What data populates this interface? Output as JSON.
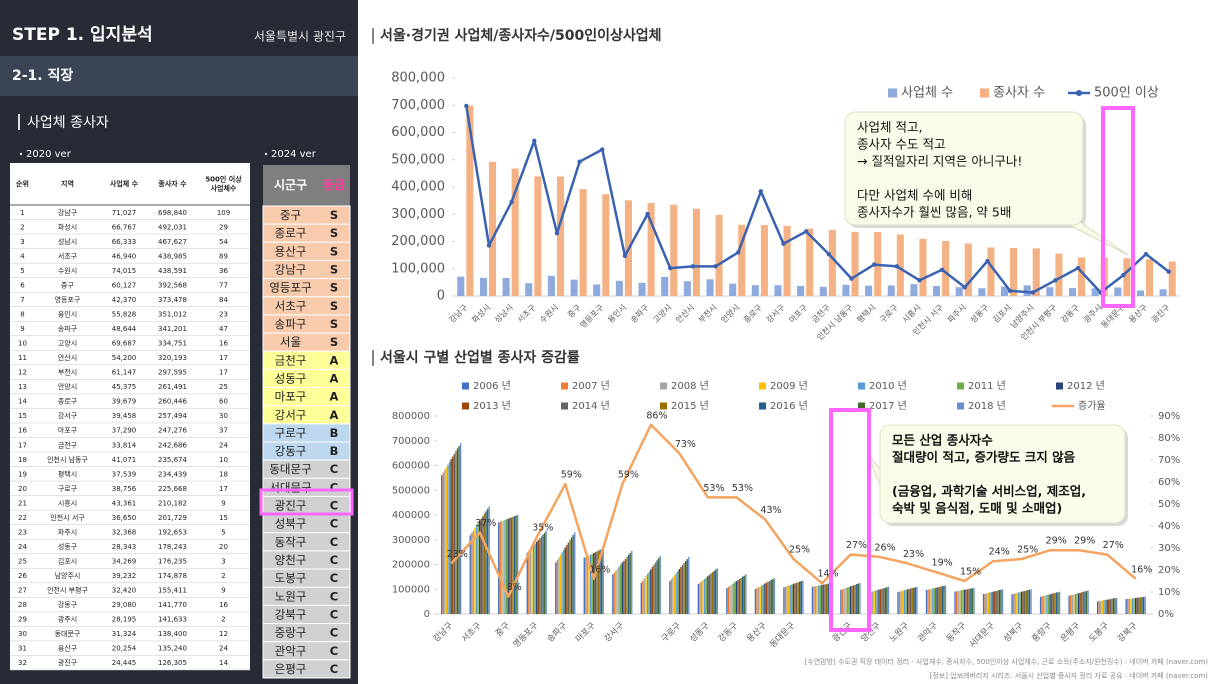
{
  "header": {
    "title": "STEP 1. 입지분석",
    "location": "서울특별시 광진구",
    "section": "2-1. 직장",
    "subsection": "사업체 종사자"
  },
  "table_2020": {
    "label": "2020 ver",
    "columns": [
      [
        "순위"
      ],
      [
        "지역"
      ],
      [
        "사업체 수"
      ],
      [
        "종사자 수"
      ],
      [
        "500인 이상",
        "사업체수"
      ]
    ],
    "rows": [
      [
        "1",
        "강남구",
        "71,027",
        "698,840",
        "109"
      ],
      [
        "2",
        "화성시",
        "66,767",
        "492,031",
        "29"
      ],
      [
        "3",
        "성남시",
        "66,333",
        "467,627",
        "54"
      ],
      [
        "4",
        "서초구",
        "46,940",
        "438,985",
        "89"
      ],
      [
        "5",
        "수원시",
        "74,015",
        "438,591",
        "36"
      ],
      [
        "6",
        "중구",
        "60,127",
        "392,568",
        "77"
      ],
      [
        "7",
        "영등포구",
        "42,370",
        "373,478",
        "84"
      ],
      [
        "8",
        "용인시",
        "55,828",
        "351,012",
        "23"
      ],
      [
        "9",
        "송파구",
        "48,644",
        "341,201",
        "47"
      ],
      [
        "10",
        "고양시",
        "69,687",
        "334,751",
        "16"
      ],
      [
        "11",
        "안산시",
        "54,200",
        "320,193",
        "17"
      ],
      [
        "12",
        "부천시",
        "61,147",
        "297,595",
        "17"
      ],
      [
        "13",
        "안양시",
        "45,375",
        "261,491",
        "25"
      ],
      [
        "14",
        "종로구",
        "39,679",
        "260,446",
        "60"
      ],
      [
        "15",
        "강서구",
        "39,458",
        "257,494",
        "30"
      ],
      [
        "16",
        "마포구",
        "37,290",
        "247,276",
        "37"
      ],
      [
        "17",
        "금천구",
        "33,814",
        "242,686",
        "24"
      ],
      [
        "18",
        "인천시 남동구",
        "41,071",
        "235,674",
        "10"
      ],
      [
        "19",
        "평택시",
        "37,539",
        "234,439",
        "18"
      ],
      [
        "20",
        "구로구",
        "38,756",
        "225,668",
        "17"
      ],
      [
        "21",
        "시흥시",
        "43,361",
        "210,182",
        "9"
      ],
      [
        "22",
        "인천시 서구",
        "36,650",
        "201,729",
        "15"
      ],
      [
        "23",
        "파주시",
        "32,368",
        "192,653",
        "5"
      ],
      [
        "24",
        "성동구",
        "28,343",
        "178,243",
        "20"
      ],
      [
        "25",
        "김포시",
        "34,269",
        "176,235",
        "3"
      ],
      [
        "26",
        "남양주시",
        "39,232",
        "174,878",
        "2"
      ],
      [
        "27",
        "인천시 부평구",
        "32,420",
        "155,411",
        "9"
      ],
      [
        "28",
        "강동구",
        "29,080",
        "141,770",
        "16"
      ],
      [
        "29",
        "광주시",
        "28,195",
        "141,633",
        "2"
      ],
      [
        "30",
        "동대문구",
        "31,324",
        "138,400",
        "12"
      ],
      [
        "31",
        "용산구",
        "20,254",
        "135,240",
        "24"
      ],
      [
        "32",
        "광진구",
        "24,445",
        "126,305",
        "14"
      ]
    ]
  },
  "table_2024": {
    "label": "2024 ver",
    "columns": [
      "시군구",
      "등급"
    ],
    "grade_colors": {
      "S": "#f8cbad",
      "A": "#ffff99",
      "B": "#bdd7ee",
      "C": "#d0d0d0"
    },
    "rows": [
      [
        "중구",
        "S"
      ],
      [
        "종로구",
        "S"
      ],
      [
        "용산구",
        "S"
      ],
      [
        "강남구",
        "S"
      ],
      [
        "영등포구",
        "S"
      ],
      [
        "서초구",
        "S"
      ],
      [
        "송파구",
        "S"
      ],
      [
        "서울",
        "S"
      ],
      [
        "금천구",
        "A"
      ],
      [
        "성동구",
        "A"
      ],
      [
        "마포구",
        "A"
      ],
      [
        "강서구",
        "A"
      ],
      [
        "구로구",
        "B"
      ],
      [
        "강동구",
        "B"
      ],
      [
        "동대문구",
        "C"
      ],
      [
        "서대문구",
        "C"
      ],
      [
        "광진구",
        "C"
      ],
      [
        "성북구",
        "C"
      ],
      [
        "동작구",
        "C"
      ],
      [
        "양천구",
        "C"
      ],
      [
        "도봉구",
        "C"
      ],
      [
        "노원구",
        "C"
      ],
      [
        "강북구",
        "C"
      ],
      [
        "중랑구",
        "C"
      ],
      [
        "관악구",
        "C"
      ],
      [
        "은평구",
        "C"
      ]
    ]
  },
  "chart_data": [
    {
      "type": "bar",
      "title": "서울·경기권 사업체/종사자수/500인이상사업체",
      "categories": [
        "강남구",
        "화성시",
        "성남시",
        "서초구",
        "수원시",
        "중구",
        "영등포구",
        "용인시",
        "송파구",
        "고양시",
        "안산시",
        "부천시",
        "안양시",
        "종로구",
        "강서구",
        "마포구",
        "금천구",
        "인천시 남동구",
        "평택시",
        "구로구",
        "시흥시",
        "인천시 서구",
        "파주시",
        "성동구",
        "김포시",
        "남양주시",
        "인천시 부평구",
        "강동구",
        "광주시",
        "동대문구",
        "용산구",
        "광진구"
      ],
      "series": [
        {
          "name": "사업체 수",
          "color": "#8faadc",
          "values": [
            71027,
            66767,
            66333,
            46940,
            74015,
            60127,
            42370,
            55828,
            48644,
            69687,
            54200,
            61147,
            45375,
            39679,
            39458,
            37290,
            33814,
            41071,
            37539,
            38756,
            43361,
            36650,
            32368,
            28343,
            34269,
            39232,
            32420,
            29080,
            28195,
            31324,
            20254,
            24445
          ]
        },
        {
          "name": "종사자 수",
          "color": "#f4b183",
          "values": [
            698840,
            492031,
            467627,
            438985,
            438591,
            392568,
            373478,
            351012,
            341201,
            334751,
            320193,
            297595,
            261491,
            260446,
            257494,
            247276,
            242686,
            235674,
            234439,
            225668,
            210182,
            201729,
            192653,
            178243,
            176235,
            174878,
            155411,
            141770,
            141633,
            138400,
            135240,
            126305
          ]
        },
        {
          "name": "500인 이상",
          "color": "#3a62b0",
          "type": "line",
          "axis": "y2",
          "values": [
            109,
            29,
            54,
            89,
            36,
            77,
            84,
            23,
            47,
            16,
            17,
            17,
            25,
            60,
            30,
            37,
            24,
            10,
            18,
            17,
            9,
            15,
            5,
            20,
            3,
            2,
            9,
            16,
            2,
            12,
            24,
            14
          ]
        }
      ],
      "ylim": [
        0,
        800000
      ],
      "yticks": [
        0,
        {
          "value": 100000,
          "label": "100,000"
        },
        {
          "value": 200000,
          "label": "200,000"
        },
        {
          "value": 300000,
          "label": "300,000"
        },
        {
          "value": 400000,
          "label": "400,000"
        },
        {
          "value": 500000,
          "label": "500,000"
        },
        {
          "value": 600000,
          "label": "600,000"
        },
        {
          "value": 700000,
          "label": "700,000"
        },
        {
          "value": 800000,
          "label": "800,000"
        }
      ],
      "y2lim": [
        0,
        125
      ],
      "legend": "top-right",
      "annotation": [
        [
          "사업체 적고,",
          "종사자 수도 적고",
          "→ 질적일자리 지역은 아니구나!"
        ],
        [
          "다만 사업체 수에 비해",
          "종사자수가 훨씬 많음, 약 5배"
        ]
      ]
    },
    {
      "type": "bar",
      "title": "서울시 구별 산업별 종사자 증감률",
      "categories": [
        "강남구",
        "서초구",
        "중구",
        "영등포구",
        "송파구",
        "마포구",
        "강서구",
        null,
        "구로구",
        "성동구",
        "강동구",
        "용산구",
        "동대문구",
        null,
        "광진구",
        "양천구",
        "노원구",
        "관악구",
        "동작구",
        "서대문구",
        "성북구",
        "중랑구",
        "은평구",
        "도봉구",
        "강북구"
      ],
      "series": [
        {
          "name": "2006 년",
          "color": "#4472c4",
          "values": [
            561000,
            318000,
            370000,
            248000,
            208000,
            228000,
            160000,
            126000,
            133000,
            121000,
            105000,
            101000,
            108000,
            110000,
            98000,
            87000,
            89000,
            97000,
            91000,
            81000,
            80000,
            70000,
            74000,
            51000,
            60000
          ]
        },
        {
          "name": "2007 년",
          "color": "#ed7d31",
          "values": [
            572000,
            328000,
            373000,
            255000,
            218000,
            231000,
            168000,
            135000,
            141000,
            126000,
            110000,
            105000,
            110000,
            111000,
            100000,
            89000,
            91000,
            99000,
            92000,
            82000,
            82000,
            72000,
            76000,
            52000,
            61000
          ]
        },
        {
          "name": "2008 년",
          "color": "#a5a5a5",
          "values": [
            583000,
            337000,
            375000,
            263000,
            228000,
            234000,
            176000,
            144000,
            149000,
            132000,
            114000,
            108000,
            113000,
            113000,
            103000,
            91000,
            92000,
            100000,
            93000,
            84000,
            83000,
            73000,
            77000,
            53000,
            62000
          ]
        },
        {
          "name": "2009 년",
          "color": "#ffc000",
          "values": [
            593000,
            347000,
            378000,
            270000,
            239000,
            237000,
            184000,
            153000,
            157000,
            137000,
            119000,
            112000,
            115000,
            114000,
            105000,
            93000,
            94000,
            102000,
            95000,
            85000,
            85000,
            75000,
            79000,
            55000,
            62000
          ]
        },
        {
          "name": "2010 년",
          "color": "#5b9bd5",
          "values": [
            604000,
            357000,
            380000,
            277000,
            249000,
            240000,
            192000,
            162000,
            165000,
            142000,
            123000,
            116000,
            117000,
            115000,
            107000,
            95000,
            96000,
            103000,
            96000,
            87000,
            87000,
            77000,
            81000,
            56000,
            63000
          ]
        },
        {
          "name": "2011 년",
          "color": "#70ad47",
          "values": [
            615000,
            367000,
            383000,
            284000,
            259000,
            243000,
            200000,
            171000,
            173000,
            148000,
            128000,
            119000,
            119000,
            116000,
            109000,
            97000,
            98000,
            105000,
            97000,
            89000,
            88000,
            78000,
            83000,
            57000,
            64000
          ]
        },
        {
          "name": "2012 년",
          "color": "#264478",
          "values": [
            626000,
            376000,
            385000,
            292000,
            269000,
            246000,
            208000,
            180000,
            182000,
            153000,
            133000,
            123000,
            122000,
            118000,
            112000,
            99000,
            99000,
            106000,
            98000,
            90000,
            90000,
            80000,
            84000,
            58000,
            65000
          ]
        },
        {
          "name": "2013 년",
          "color": "#9e480e",
          "values": [
            636000,
            386000,
            388000,
            299000,
            279000,
            250000,
            215000,
            190000,
            190000,
            158000,
            137000,
            127000,
            124000,
            119000,
            114000,
            100000,
            101000,
            108000,
            99000,
            92000,
            92000,
            82000,
            86000,
            59000,
            66000
          ]
        },
        {
          "name": "2014 년",
          "color": "#636363",
          "values": [
            647000,
            396000,
            390000,
            306000,
            289000,
            253000,
            223000,
            199000,
            198000,
            164000,
            142000,
            130000,
            126000,
            120000,
            116000,
            102000,
            103000,
            109000,
            100000,
            93000,
            93000,
            83000,
            88000,
            60000,
            67000
          ]
        },
        {
          "name": "2015 년",
          "color": "#997300",
          "values": [
            658000,
            406000,
            393000,
            313000,
            300000,
            256000,
            231000,
            208000,
            206000,
            169000,
            146000,
            134000,
            128000,
            121000,
            118000,
            104000,
            105000,
            111000,
            102000,
            95000,
            95000,
            85000,
            90000,
            62000,
            67000
          ]
        },
        {
          "name": "2016 년",
          "color": "#255e91",
          "values": [
            669000,
            415000,
            395000,
            321000,
            310000,
            259000,
            239000,
            217000,
            214000,
            174000,
            151000,
            138000,
            131000,
            123000,
            121000,
            106000,
            106000,
            112000,
            103000,
            97000,
            97000,
            87000,
            91000,
            63000,
            68000
          ]
        },
        {
          "name": "2017 년",
          "color": "#43682b",
          "values": [
            679000,
            425000,
            398000,
            328000,
            320000,
            262000,
            247000,
            226000,
            222000,
            180000,
            155000,
            141000,
            133000,
            124000,
            123000,
            108000,
            108000,
            114000,
            104000,
            98000,
            98000,
            88000,
            93000,
            64000,
            69000
          ]
        },
        {
          "name": "2018 년",
          "color": "#698ed0",
          "values": [
            690000,
            435000,
            400000,
            335000,
            330000,
            265000,
            255000,
            235000,
            230000,
            185000,
            160000,
            145000,
            135000,
            125000,
            125000,
            110000,
            110000,
            115000,
            105000,
            100000,
            100000,
            90000,
            95000,
            65000,
            70000
          ]
        },
        {
          "name": "증가율",
          "color": "#f4a460",
          "type": "line",
          "axis": "y2",
          "values": [
            23,
            37,
            8,
            35,
            59,
            16,
            59,
            86,
            73,
            53,
            53,
            43,
            25,
            14,
            27,
            26,
            23,
            19,
            15,
            24,
            25,
            29,
            29,
            27,
            16
          ],
          "value_labels": [
            "23%",
            "37%",
            "8%",
            "35%",
            "59%",
            "16%",
            "59%",
            "86%",
            "73%",
            "53%",
            "53%",
            "43%",
            "25%",
            "14%",
            "27%",
            "26%",
            "23%",
            "19%",
            "15%",
            "24%",
            "25%",
            "29%",
            "29%",
            "27%",
            "16%"
          ]
        }
      ],
      "ylim": [
        0,
        800000
      ],
      "yticks": [
        0,
        100000,
        200000,
        300000,
        400000,
        500000,
        600000,
        700000,
        800000
      ],
      "y2lim": [
        0,
        90
      ],
      "y2ticks": [
        {
          "value": 0,
          "label": "0%"
        },
        {
          "value": 10,
          "label": "10%"
        },
        {
          "value": 20,
          "label": "20%"
        },
        {
          "value": 30,
          "label": "30%"
        },
        {
          "value": 40,
          "label": "40%"
        },
        {
          "value": 50,
          "label": "50%"
        },
        {
          "value": 60,
          "label": "60%"
        },
        {
          "value": 70,
          "label": "70%"
        },
        {
          "value": 80,
          "label": "80%"
        },
        {
          "value": 90,
          "label": "90%"
        }
      ],
      "legend": "top",
      "annotation": [
        [
          "모든 산업 종사자수",
          "절대량이 적고, 증가량도 크지 않음"
        ],
        [
          "(금융업, 과학기술 서비스업, 제조업,",
          "숙박 및 음식점, 도매 및 소매업)"
        ]
      ]
    }
  ],
  "footnotes": [
    "[수연맘방] 수도권 직장 데이터 정리 - 사업체수, 종사자수, 500인이상 사업체수, 근로 소득(주소지/원천징수) : 네이버 카페 (naver.com)",
    "[정보] 업보레버리지 시리즈. 서울시 산업별 종사자 정리 자료 공유 : 네이버 카페 (naver.com)"
  ]
}
